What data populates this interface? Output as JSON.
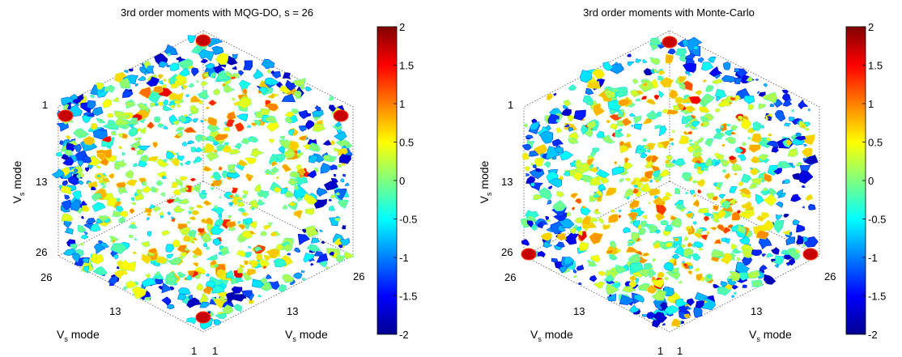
{
  "chart_data": [
    {
      "type": "heatmap",
      "title": "3rd order moments with MQG-DO, s = 26",
      "axes": {
        "left": {
          "label": "V",
          "label_sub": "s",
          "label_suffix": " mode",
          "ticks": [
            "1",
            "13",
            "26"
          ]
        },
        "bottom_left": {
          "label": "V",
          "label_sub": "s",
          "label_suffix": " mode",
          "ticks": [
            "26",
            "13",
            "1"
          ]
        },
        "bottom_right": {
          "label": "V",
          "label_sub": "s",
          "label_suffix": " mode",
          "ticks": [
            "1",
            "13",
            "26"
          ]
        }
      },
      "colorbar": {
        "min": -2,
        "max": 2,
        "ticks": [
          "2",
          "1.5",
          "1",
          "0.5",
          "0",
          "-0.5",
          "-1",
          "-1.5",
          "-2"
        ]
      },
      "seed": 11
    },
    {
      "type": "heatmap",
      "title": "3rd order moments with Monte-Carlo",
      "axes": {
        "left": {
          "label": "V",
          "label_sub": "s",
          "label_suffix": " mode",
          "ticks": [
            "1",
            "13",
            "26"
          ]
        },
        "bottom_left": {
          "label": "V",
          "label_sub": "s",
          "label_suffix": " mode",
          "ticks": [
            "26",
            "13",
            "1"
          ]
        },
        "bottom_right": {
          "label": "V",
          "label_sub": "s",
          "label_suffix": " mode",
          "ticks": [
            "1",
            "13",
            "26"
          ]
        }
      },
      "colorbar": {
        "min": -2,
        "max": 2,
        "ticks": [
          "2",
          "1.5",
          "1",
          "0.5",
          "0",
          "-0.5",
          "-1",
          "-1.5",
          "-2"
        ]
      },
      "seed": 47
    }
  ],
  "colormap": "jet"
}
